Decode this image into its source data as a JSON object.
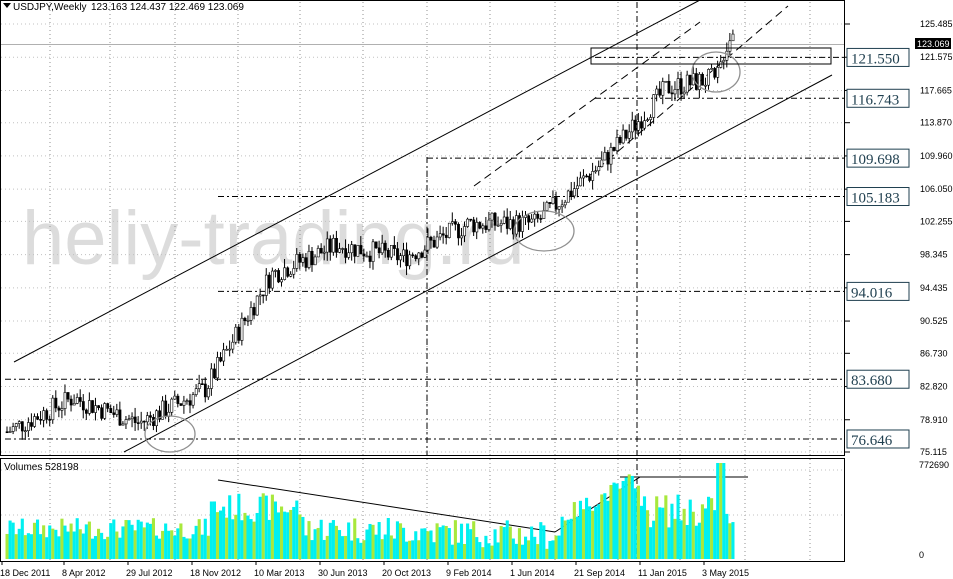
{
  "header": {
    "symbol": "USDJPY,Weekly",
    "ohlc": "123.163 124.437 122.469 123.069"
  },
  "watermark": "heliy-trading.ru",
  "volume_label": "Volumes 528198",
  "price_axis": {
    "ticks": [
      "125.485",
      "121.575",
      "117.665",
      "113.870",
      "109.960",
      "106.050",
      "102.255",
      "98.345",
      "94.435",
      "90.525",
      "86.730",
      "82.820",
      "78.910",
      "75.115"
    ],
    "current": "123.069"
  },
  "volume_axis": {
    "ticks": [
      "772690",
      "0"
    ]
  },
  "level_boxes": [
    "121.550",
    "116.743",
    "109.698",
    "105.183",
    "94.016",
    "83.680",
    "76.646"
  ],
  "time_axis": [
    "18 Dec 2011",
    "8 Apr 2012",
    "29 Jul 2012",
    "18 Nov 2012",
    "10 Mar 2013",
    "30 Jun 2013",
    "20 Oct 2013",
    "9 Feb 2014",
    "1 Jun 2014",
    "21 Sep 2014",
    "11 Jan 2015",
    "3 May 2015"
  ],
  "colors": {
    "background": "#ffffff",
    "candle": "#000000",
    "volume_up": "#00f0f0",
    "volume_down": "#a8e83c",
    "watermark": "#dcdcdc",
    "level_box_text": "#1f3f4f"
  },
  "chart_data": {
    "type": "candlestick",
    "price_range": [
      75.115,
      125.485
    ],
    "volume_range": [
      0,
      772690
    ],
    "price_path": [
      [
        "18 Dec 2011",
        77.5
      ],
      [
        "8 Apr 2012",
        81.5
      ],
      [
        "29 Jul 2012",
        78.5
      ],
      [
        "18 Nov 2012",
        82.5
      ],
      [
        "10 Mar 2013",
        96.0
      ],
      [
        "30 Jun 2013",
        99.5
      ],
      [
        "20 Oct 2013",
        98.0
      ],
      [
        "9 Feb 2014",
        102.0
      ],
      [
        "1 Jun 2014",
        102.0
      ],
      [
        "21 Sep 2014",
        109.0
      ],
      [
        "11 Jan 2015",
        118.0
      ],
      [
        "3 May 2015",
        119.5
      ]
    ],
    "levels": [
      121.55,
      116.743,
      109.698,
      105.183,
      94.016,
      83.68,
      76.646
    ]
  }
}
